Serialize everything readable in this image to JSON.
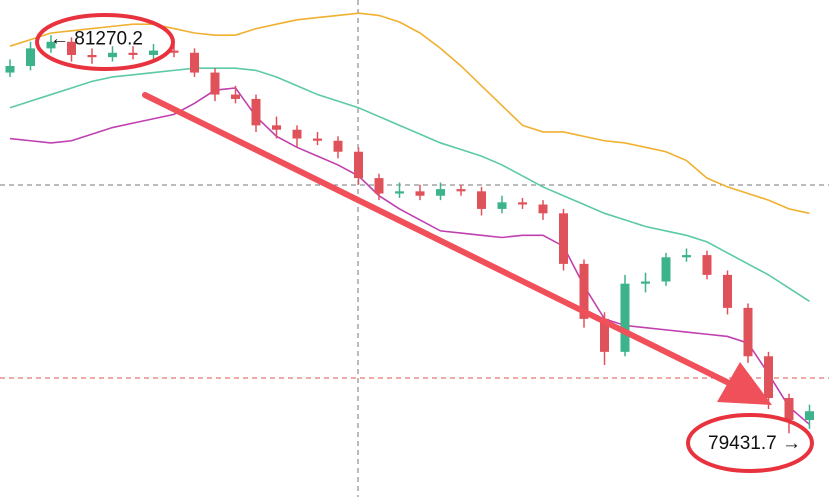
{
  "chart_data": {
    "type": "candlestick",
    "ylim": [
      79190,
      81450
    ],
    "up_color": "#3cb38a",
    "down_color": "#e0525a",
    "open": [
      81120,
      81150,
      81230,
      81260,
      81200,
      81190,
      81210,
      81200,
      81220,
      81210,
      81120,
      81020,
      81000,
      80880,
      80860,
      80820,
      80810,
      80760,
      80640,
      80570,
      80580,
      80560,
      80590,
      80580,
      80500,
      80530,
      80520,
      80480,
      80250,
      80000,
      79850,
      80160,
      80170,
      80280,
      80290,
      80200,
      80050,
      79830,
      79640,
      79540
    ],
    "close": [
      81150,
      81230,
      81260,
      81200,
      81190,
      81210,
      81200,
      81220,
      81210,
      81120,
      81020,
      81000,
      80880,
      80860,
      80820,
      80810,
      80760,
      80640,
      80570,
      80580,
      80560,
      80590,
      80580,
      80500,
      80530,
      80520,
      80480,
      80250,
      80000,
      79850,
      80160,
      80170,
      80280,
      80290,
      80200,
      80050,
      79830,
      79640,
      79540,
      79580
    ],
    "high": [
      81180,
      81260,
      81290,
      81280,
      81230,
      81240,
      81240,
      81250,
      81250,
      81230,
      81140,
      81060,
      81020,
      80920,
      80880,
      80850,
      80830,
      80780,
      80660,
      80620,
      80610,
      80620,
      80610,
      80600,
      80560,
      80550,
      80540,
      80500,
      80270,
      80030,
      80200,
      80210,
      80300,
      80320,
      80310,
      80220,
      80070,
      79850,
      79660,
      79610
    ],
    "low": [
      81100,
      81130,
      81210,
      81170,
      81160,
      81170,
      81180,
      81180,
      81190,
      81100,
      80990,
      80980,
      80850,
      80820,
      80780,
      80790,
      80730,
      80610,
      80540,
      80550,
      80540,
      80540,
      80560,
      80470,
      80480,
      80500,
      80450,
      80220,
      79960,
      79790,
      79830,
      80120,
      80150,
      80260,
      80180,
      80020,
      79800,
      79590,
      79480,
      79500
    ],
    "overlays": [
      {
        "color": "#f0b030",
        "values": [
          81240,
          81270,
          81300,
          81310,
          81320,
          81330,
          81340,
          81340,
          81320,
          81300,
          81290,
          81290,
          81320,
          81340,
          81360,
          81370,
          81380,
          81390,
          81380,
          81350,
          81300,
          81230,
          81150,
          81060,
          80970,
          80880,
          80850,
          80850,
          80830,
          80810,
          80800,
          80780,
          80760,
          80720,
          80640,
          80600,
          80570,
          80540,
          80500,
          80480
        ]
      },
      {
        "color": "#5cc9a7",
        "values": [
          80960,
          80990,
          81020,
          81050,
          81080,
          81100,
          81110,
          81120,
          81130,
          81140,
          81140,
          81140,
          81130,
          81100,
          81060,
          81020,
          80990,
          80960,
          80920,
          80880,
          80840,
          80800,
          80770,
          80740,
          80700,
          80650,
          80600,
          80560,
          80520,
          80480,
          80450,
          80420,
          80400,
          80380,
          80350,
          80300,
          80250,
          80200,
          80140,
          80080
        ]
      },
      {
        "color": "#c040b0",
        "values": [
          80820,
          80810,
          80800,
          80810,
          80840,
          80870,
          80890,
          80910,
          80930,
          80980,
          81040,
          81050,
          80920,
          80830,
          80780,
          80740,
          80700,
          80650,
          80560,
          80500,
          80450,
          80400,
          80390,
          80380,
          80370,
          80380,
          80380,
          80330,
          80150,
          80000,
          79970,
          79960,
          79950,
          79940,
          79930,
          79920,
          79890,
          79750,
          79600,
          79520
        ]
      }
    ],
    "high_marker": {
      "value": 81270.2,
      "label": "← 81270.2"
    },
    "low_marker": {
      "value": 79431.7,
      "label": "79431.7 →"
    }
  }
}
